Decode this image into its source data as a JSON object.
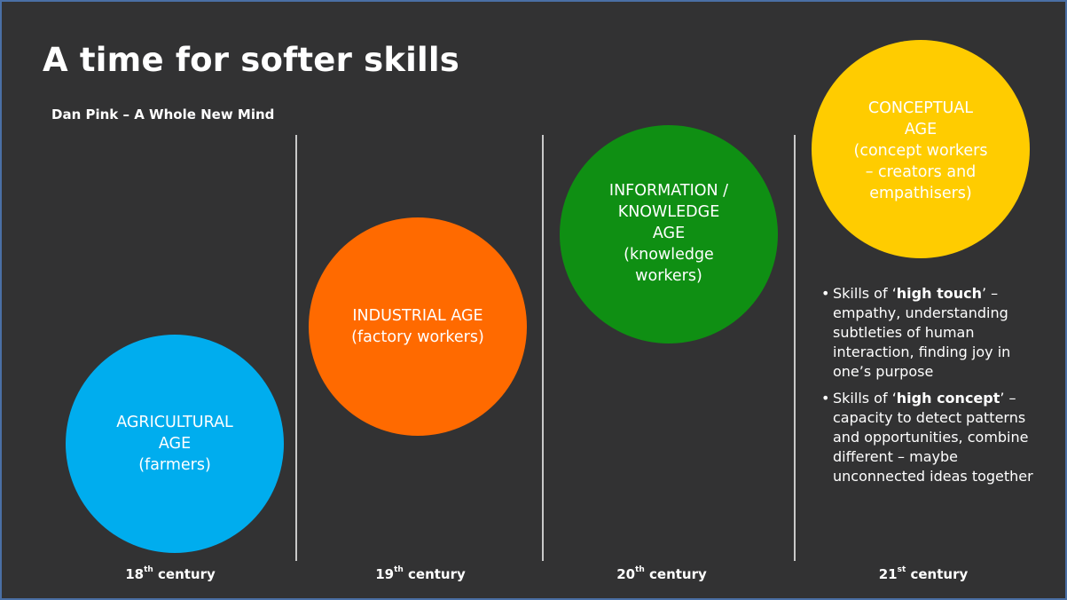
{
  "slide": {
    "title": "A time for softer skills",
    "subtitle": "Dan Pink – A Whole New Mind"
  },
  "ages": [
    {
      "label": "AGRICULTURAL\nAGE\n(farmers)",
      "color": "#00adee",
      "century_num": "18",
      "century_suffix": "th",
      "century_word": " century"
    },
    {
      "label": "INDUSTRIAL AGE\n(factory workers)",
      "color": "#ff6a00",
      "century_num": "19",
      "century_suffix": "th",
      "century_word": " century"
    },
    {
      "label": "INFORMATION /\nKNOWLEDGE\nAGE\n(knowledge\nworkers)",
      "color": "#0f8f13",
      "century_num": "20",
      "century_suffix": "th",
      "century_word": " century"
    },
    {
      "label": "CONCEPTUAL\nAGE\n(concept workers\n– creators and\nempathisers)",
      "color": "#ffcc00",
      "century_num": "21",
      "century_suffix": "st",
      "century_word": " century"
    }
  ],
  "skills": [
    {
      "prefix": "Skills of ‘",
      "emphasis": "high touch",
      "suffix": "’ – empathy, understanding subtleties of human interaction, finding joy in one’s purpose"
    },
    {
      "prefix": "Skills of ‘",
      "emphasis": "high concept",
      "suffix": "’ – capacity to detect patterns and opportunities, combine different – maybe unconnected ideas together"
    }
  ]
}
